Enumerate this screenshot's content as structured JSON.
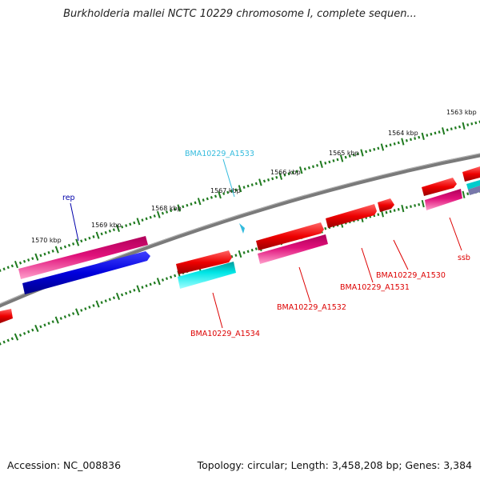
{
  "title": "Burkholderia mallei NCTC 10229 chromosome I, complete sequen...",
  "footer": {
    "accession": "Accession: NC_008836",
    "topology": "Topology: circular; Length: 3,458,208 bp; Genes: 3,384"
  },
  "ruler_labels": [
    "1570 kbp",
    "1569 kbp",
    "1568 kbp",
    "1567 kbp",
    "1566 kbp",
    "1565 kbp",
    "1564 kbp",
    "1563 kbp"
  ],
  "gene_labels": [
    {
      "text": "rep",
      "color": "#0000aa"
    },
    {
      "text": "BMA10229_A1533",
      "color": "#33bbdd"
    },
    {
      "text": "BMA10229_A1534",
      "color": "#dd0000"
    },
    {
      "text": "BMA10229_A1532",
      "color": "#dd0000"
    },
    {
      "text": "BMA10229_A1531",
      "color": "#dd0000"
    },
    {
      "text": "BMA10229_A1530",
      "color": "#dd0000"
    },
    {
      "text": "ssb",
      "color": "#dd0000"
    }
  ],
  "colors": {
    "backbone": "#7a7a7a",
    "ruler_ticks": "#1f7a1f",
    "cds_red": "#ee0000",
    "cds_magenta": "#e0107a",
    "cds_blue": "#0000dd",
    "cds_cyan": "#00e6e6"
  }
}
